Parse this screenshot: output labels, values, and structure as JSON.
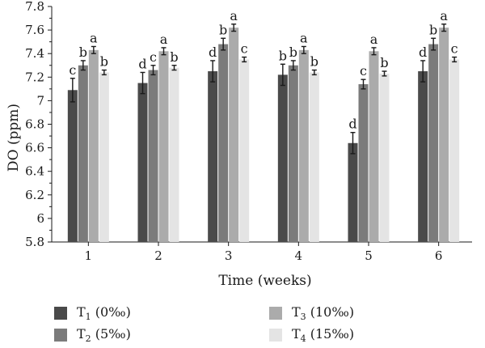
{
  "chart_data": {
    "type": "bar",
    "categories": [
      "1",
      "2",
      "3",
      "4",
      "5",
      "6"
    ],
    "xlabel": "Time (weeks)",
    "ylabel": "DO (ppm)",
    "ylim": [
      5.8,
      7.8
    ],
    "yticks": [
      "5.8",
      "6",
      "6.2",
      "6.4",
      "6.6",
      "6.8",
      "7",
      "7.2",
      "7.4",
      "7.6",
      "7.8"
    ],
    "ytick_values": [
      5.8,
      6.0,
      6.2,
      6.4,
      6.6,
      6.8,
      7.0,
      7.2,
      7.4,
      7.6,
      7.8
    ],
    "grid": false,
    "legend_position": "bottom",
    "series": [
      {
        "name": "T1 (0‰)",
        "label_main": "T",
        "label_sub": "1",
        "label_rest": " (0‰)",
        "color": "#4a4a4a",
        "values": [
          7.09,
          7.15,
          7.25,
          7.22,
          6.64,
          7.25
        ],
        "errors": [
          0.1,
          0.09,
          0.09,
          0.09,
          0.09,
          0.09
        ],
        "letters": [
          "c",
          "d",
          "d",
          "b",
          "d",
          "d"
        ]
      },
      {
        "name": "T2 (5‰)",
        "label_main": "T",
        "label_sub": "2",
        "label_rest": " (5‰)",
        "color": "#7b7b7b",
        "values": [
          7.3,
          7.26,
          7.48,
          7.3,
          7.14,
          7.48
        ],
        "errors": [
          0.04,
          0.04,
          0.05,
          0.04,
          0.04,
          0.05
        ],
        "letters": [
          "b",
          "c",
          "b",
          "b",
          "c",
          "b"
        ]
      },
      {
        "name": "T3 (10‰)",
        "label_main": "T",
        "label_sub": "3",
        "label_rest": " (10‰)",
        "color": "#ababab",
        "values": [
          7.43,
          7.42,
          7.62,
          7.43,
          7.42,
          7.62
        ],
        "errors": [
          0.03,
          0.03,
          0.03,
          0.03,
          0.03,
          0.03
        ],
        "letters": [
          "a",
          "a",
          "a",
          "a",
          "a",
          "a"
        ]
      },
      {
        "name": "T4 (15‰)",
        "label_main": "T",
        "label_sub": "4",
        "label_rest": " (15‰)",
        "color": "#e4e4e4",
        "values": [
          7.24,
          7.28,
          7.35,
          7.24,
          7.23,
          7.35
        ],
        "errors": [
          0.02,
          0.02,
          0.02,
          0.02,
          0.02,
          0.02
        ],
        "letters": [
          "b",
          "b",
          "c",
          "b",
          "b",
          "c"
        ]
      }
    ]
  }
}
